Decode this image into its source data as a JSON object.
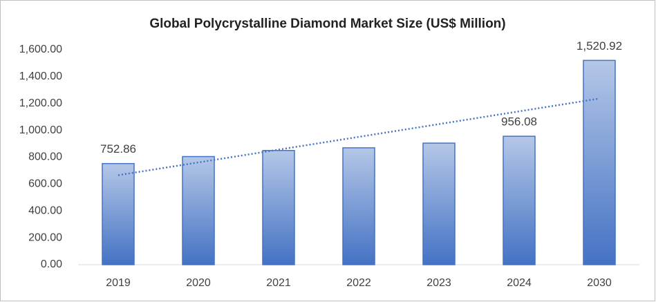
{
  "chart_data": {
    "type": "bar",
    "title": "Global Polycrystalline Diamond Market Size (US$ Million)",
    "categories": [
      "2019",
      "2020",
      "2021",
      "2022",
      "2023",
      "2024",
      "2030"
    ],
    "values": [
      752.86,
      805,
      850,
      870,
      905,
      956.08,
      1520.92
    ],
    "value_labels": [
      "752.86",
      null,
      null,
      null,
      null,
      "956.08",
      "1,520.92"
    ],
    "color": "#4472c4",
    "ylim": [
      0,
      1600
    ],
    "yticks": [
      {
        "value": 0,
        "label": "0.00"
      },
      {
        "value": 200,
        "label": "200.00"
      },
      {
        "value": 400,
        "label": "400.00"
      },
      {
        "value": 600,
        "label": "600.00"
      },
      {
        "value": 800,
        "label": "800.00"
      },
      {
        "value": 1000,
        "label": "1,000.00"
      },
      {
        "value": 1200,
        "label": "1,200.00"
      },
      {
        "value": 1400,
        "label": "1,400.00"
      },
      {
        "value": 1600,
        "label": "1,600.00"
      }
    ],
    "trendline": "linear"
  }
}
